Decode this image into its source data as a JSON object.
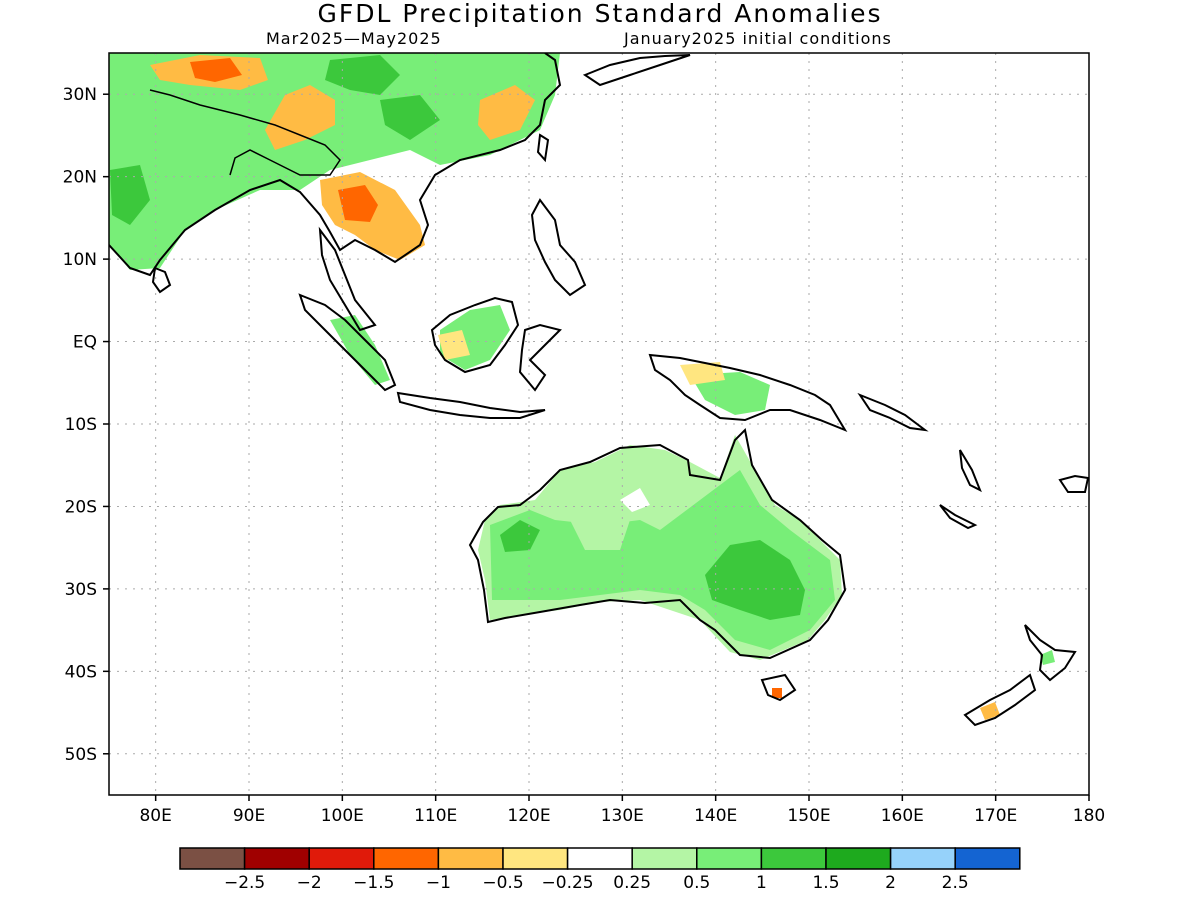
{
  "title": "GFDL Precipitation Standard Anomalies",
  "period": "Mar2025—May2025",
  "initial_conditions": "January2025 initial conditions",
  "lat_labels": [
    "30N",
    "20N",
    "10N",
    "EQ",
    "10S",
    "20S",
    "30S",
    "40S",
    "50S"
  ],
  "lat_values": [
    30,
    20,
    10,
    0,
    -10,
    -20,
    -30,
    -40,
    -50
  ],
  "lon_labels": [
    "80E",
    "90E",
    "100E",
    "110E",
    "120E",
    "130E",
    "140E",
    "150E",
    "160E",
    "170E",
    "180"
  ],
  "lon_values": [
    80,
    90,
    100,
    110,
    120,
    130,
    140,
    150,
    160,
    170,
    180
  ],
  "map_extent": {
    "lon_min": 75,
    "lon_max": 180,
    "lat_min": -55,
    "lat_max": 35
  },
  "colorbar": {
    "colors": [
      "#7b5044",
      "#a00000",
      "#e01a0a",
      "#ff6600",
      "#ffbb44",
      "#ffe680",
      "#ffffff",
      "#b4f5a5",
      "#78ee78",
      "#3cc83c",
      "#1eaa1e",
      "#96d2fa",
      "#1464d2"
    ],
    "labels": [
      "−2.5",
      "−2",
      "−1.5",
      "−1",
      "−0.5",
      "−0.25",
      "0.25",
      "0.5",
      "1",
      "1.5",
      "2",
      "2.5"
    ]
  },
  "legend_colors": {
    "land_outline": "#000000",
    "grid": "#aaaaaa"
  }
}
